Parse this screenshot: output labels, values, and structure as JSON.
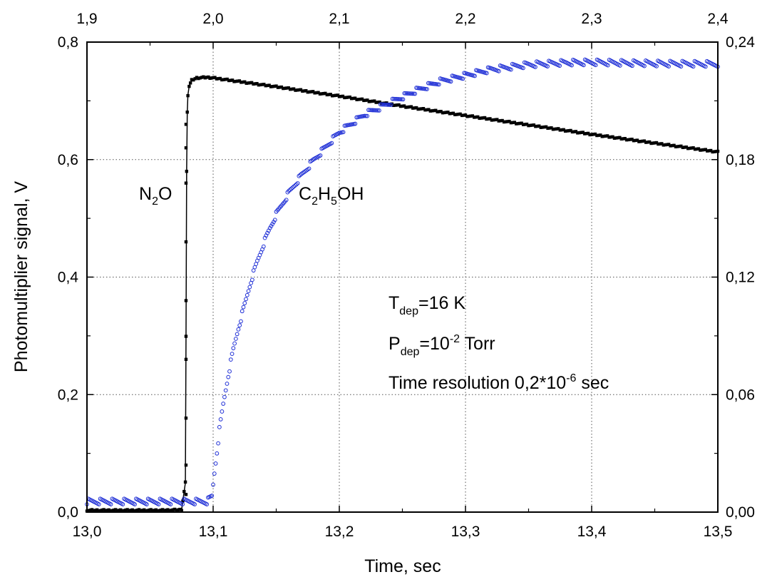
{
  "chart_data": {
    "type": "scatter",
    "title": "",
    "xlabel": "Time, sec",
    "ylabel": "Photomultiplier signal, V",
    "xlim": [
      13.0,
      13.5
    ],
    "ylim": [
      0.0,
      0.8
    ],
    "x2lim": [
      1.9,
      2.4
    ],
    "y2lim": [
      0.0,
      0.24
    ],
    "x_ticks": [
      "13,0",
      "13,1",
      "13,2",
      "13,3",
      "13,4",
      "13,5"
    ],
    "y_ticks": [
      "0,0",
      "0,2",
      "0,4",
      "0,6",
      "0,8"
    ],
    "x2_ticks": [
      "1,9",
      "2,0",
      "2,1",
      "2,2",
      "2,3",
      "2,4"
    ],
    "y2_ticks": [
      "0,00",
      "0,06",
      "0,12",
      "0,18",
      "0,24"
    ],
    "grid": true,
    "series": [
      {
        "name": "N2O",
        "axes": "bottom-left",
        "color": "#000000",
        "marker": "filled-square",
        "x": [
          13.0,
          13.02,
          13.04,
          13.06,
          13.075,
          13.078,
          13.0785,
          13.079,
          13.0795,
          13.08,
          13.081,
          13.083,
          13.087,
          13.095,
          13.1,
          13.15,
          13.2,
          13.25,
          13.3,
          13.35,
          13.4,
          13.45,
          13.5
        ],
        "y": [
          0.003,
          0.003,
          0.003,
          0.003,
          0.004,
          0.05,
          0.3,
          0.58,
          0.68,
          0.71,
          0.725,
          0.735,
          0.739,
          0.74,
          0.739,
          0.724,
          0.708,
          0.691,
          0.675,
          0.659,
          0.643,
          0.628,
          0.613
        ]
      },
      {
        "name": "C2H5OH",
        "axes": "top-right",
        "color": "#1f2fd6",
        "marker": "open-circle",
        "x": [
          1.9,
          1.92,
          1.94,
          1.96,
          1.98,
          1.995,
          1.999,
          2.001,
          2.003,
          2.005,
          2.008,
          2.012,
          2.016,
          2.02,
          2.025,
          2.03,
          2.035,
          2.04,
          2.045,
          2.05,
          2.06,
          2.07,
          2.08,
          2.09,
          2.1,
          2.12,
          2.14,
          2.16,
          2.18,
          2.2,
          2.22,
          2.25,
          2.28,
          2.3,
          2.33,
          2.36,
          2.4
        ],
        "y": [
          0.0054,
          0.0054,
          0.0054,
          0.0054,
          0.0054,
          0.0054,
          0.008,
          0.02,
          0.031,
          0.042,
          0.055,
          0.07,
          0.083,
          0.094,
          0.106,
          0.118,
          0.128,
          0.137,
          0.145,
          0.152,
          0.163,
          0.172,
          0.18,
          0.187,
          0.194,
          0.203,
          0.209,
          0.215,
          0.22,
          0.223,
          0.226,
          0.2285,
          0.2295,
          0.2297,
          0.2293,
          0.229,
          0.2288
        ]
      }
    ],
    "annotations": {
      "n2o": {
        "base": "N",
        "sub": "2",
        "rest": "O"
      },
      "c2h5oh": {
        "a": "C",
        "s1": "2",
        "b": "H",
        "s2": "5",
        "c": "OH"
      },
      "tdep": {
        "base": "T",
        "sub": "dep",
        "rest": "=16 K"
      },
      "pdep": {
        "base": "P",
        "sub": "dep",
        "mid": "=10",
        "sup": "-2",
        "rest": " Torr"
      },
      "resolution": {
        "text": "Time resolution 0,2*10",
        "sup": "-6",
        "rest": " sec"
      }
    }
  }
}
